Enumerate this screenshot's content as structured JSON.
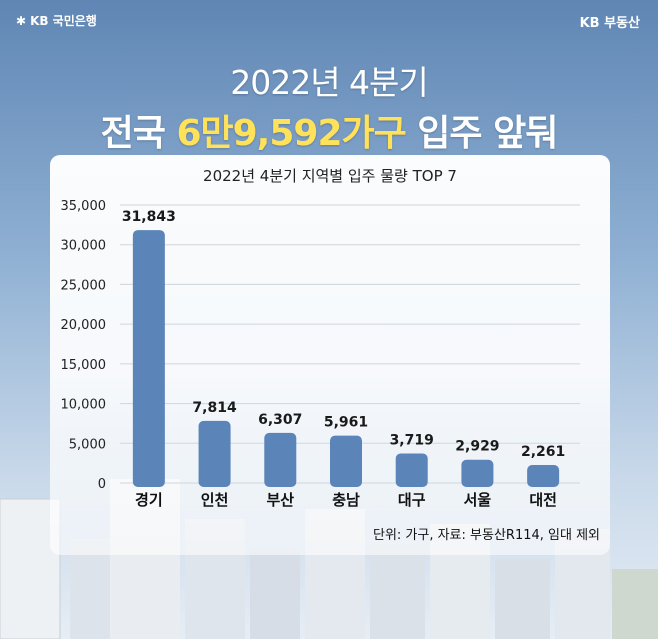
{
  "brand": {
    "left": "KB 국민은행",
    "right": "KB 부동산"
  },
  "headline": {
    "line1": "2022년 4분기",
    "line2_prefix": "전국",
    "line2_highlight": "6만9,592가구",
    "line2_suffix": "입주 앞둬"
  },
  "colors": {
    "bar": "#5b84b8",
    "highlight": "#ffe15a"
  },
  "chart_data": {
    "type": "bar",
    "title": "2022년 4분기 지역별 입주 물량 TOP 7",
    "categories": [
      "경기",
      "인천",
      "부산",
      "충남",
      "대구",
      "서울",
      "대전"
    ],
    "values": [
      31843,
      7814,
      6307,
      5961,
      3719,
      2929,
      2261
    ],
    "data_labels": [
      "31,843",
      "7,814",
      "6,307",
      "5,961",
      "3,719",
      "2,929",
      "2,261"
    ],
    "yticks": [
      "0",
      "5,000",
      "10,000",
      "15,000",
      "20,000",
      "25,000",
      "30,000",
      "35,000"
    ],
    "ylim": [
      0,
      35000
    ],
    "xlabel": "",
    "ylabel": "",
    "grid": true,
    "note": "단위: 가구, 자료: 부동산R114, 임대 제외"
  }
}
